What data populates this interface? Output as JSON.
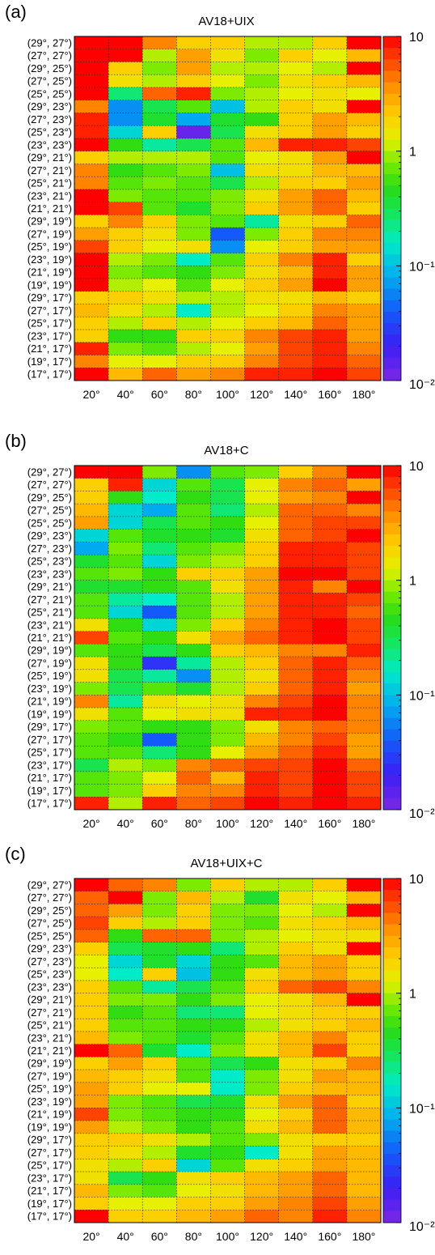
{
  "chart_data": [
    {
      "panel_label": "(a)",
      "title": "AV18+UIX",
      "type": "heatmap",
      "x": [
        "20°",
        "40°",
        "60°",
        "80°",
        "100°",
        "120°",
        "140°",
        "160°",
        "180°"
      ],
      "y": [
        "(29°, 27°)",
        "(27°, 27°)",
        "(29°, 25°)",
        "(27°, 25°)",
        "(25°, 25°)",
        "(29°, 23°)",
        "(27°, 23°)",
        "(25°, 23°)",
        "(23°, 23°)",
        "(29°, 21°)",
        "(27°, 21°)",
        "(25°, 21°)",
        "(23°, 21°)",
        "(21°, 21°)",
        "(29°, 19°)",
        "(27°, 19°)",
        "(25°, 19°)",
        "(23°, 19°)",
        "(21°, 19°)",
        "(19°, 19°)",
        "(29°, 17°)",
        "(27°, 17°)",
        "(25°, 17°)",
        "(23°, 17°)",
        "(21°, 17°)",
        "(19°, 17°)",
        "(17°, 17°)"
      ],
      "colorbar": {
        "scale": "log",
        "range": [
          0.01,
          10
        ],
        "ticks": [
          "10",
          "1",
          "10⁻¹",
          "10⁻²"
        ]
      },
      "z_log10": [
        [
          1.0,
          1.0,
          0.6,
          0.3,
          0.3,
          0.0,
          0.0,
          0.3,
          1.0
        ],
        [
          1.0,
          1.0,
          0.0,
          0.5,
          0.2,
          -0.1,
          0.3,
          0.1,
          0.4
        ],
        [
          1.0,
          0.3,
          -0.1,
          0.5,
          0.0,
          0.0,
          0.1,
          0.0,
          1.0
        ],
        [
          1.0,
          0.2,
          0.0,
          0.3,
          0.1,
          -0.1,
          0.2,
          0.3,
          0.4
        ],
        [
          1.0,
          -0.6,
          0.7,
          0.9,
          -0.1,
          0.0,
          0.1,
          0.2,
          0.1
        ],
        [
          0.6,
          -1.2,
          -0.5,
          -0.2,
          -1.0,
          0.0,
          0.3,
          0.2,
          1.0
        ],
        [
          0.9,
          -1.2,
          -0.4,
          -1.1,
          -0.4,
          -0.3,
          0.3,
          0.5,
          0.4
        ],
        [
          0.9,
          -0.9,
          0.3,
          -1.9,
          -0.5,
          0.2,
          0.3,
          0.5,
          0.3
        ],
        [
          1.0,
          -0.3,
          -0.7,
          -0.5,
          -0.2,
          0.4,
          0.9,
          0.9,
          0.8
        ],
        [
          0.3,
          0.0,
          0.0,
          0.0,
          -0.2,
          0.1,
          0.2,
          0.5,
          1.0
        ],
        [
          0.6,
          -0.3,
          -0.2,
          -0.1,
          -1.0,
          0.2,
          0.2,
          0.4,
          0.4
        ],
        [
          0.6,
          -0.2,
          -0.1,
          -0.2,
          -0.5,
          0.0,
          0.3,
          0.3,
          0.5
        ],
        [
          1.0,
          -0.1,
          -0.2,
          -0.2,
          -0.1,
          0.2,
          0.5,
          0.7,
          0.4
        ],
        [
          1.0,
          0.8,
          -0.2,
          -0.4,
          -0.1,
          0.3,
          0.5,
          0.7,
          0.3
        ],
        [
          0.3,
          0.6,
          0.3,
          -0.1,
          -0.2,
          -0.7,
          0.2,
          0.3,
          0.7
        ],
        [
          0.5,
          0.3,
          0.2,
          -0.1,
          -1.4,
          -0.1,
          0.3,
          0.6,
          0.6
        ],
        [
          0.8,
          0.3,
          0.1,
          0.2,
          -1.2,
          0.1,
          0.3,
          0.5,
          0.5
        ],
        [
          1.0,
          0.0,
          -0.1,
          -0.8,
          -0.2,
          0.3,
          0.6,
          0.9,
          0.3
        ],
        [
          1.0,
          -0.1,
          -0.2,
          -0.3,
          -0.1,
          0.2,
          0.4,
          0.9,
          0.5
        ],
        [
          1.0,
          0.0,
          0.1,
          -0.2,
          0.1,
          0.3,
          0.5,
          1.0,
          0.5
        ],
        [
          0.3,
          0.3,
          0.2,
          0.0,
          0.0,
          0.2,
          0.2,
          0.4,
          0.3
        ],
        [
          0.4,
          0.2,
          0.0,
          -0.8,
          0.0,
          0.1,
          0.3,
          0.6,
          0.5
        ],
        [
          0.3,
          0.0,
          0.3,
          0.0,
          0.1,
          0.3,
          0.4,
          0.7,
          0.5
        ],
        [
          0.3,
          -0.3,
          -0.3,
          0.3,
          0.3,
          0.6,
          0.8,
          0.9,
          0.5
        ],
        [
          0.9,
          -0.1,
          -0.2,
          0.0,
          0.1,
          0.5,
          0.8,
          0.9,
          0.6
        ],
        [
          0.6,
          0.1,
          0.1,
          0.3,
          0.3,
          0.6,
          0.8,
          0.9,
          0.7
        ],
        [
          1.0,
          0.4,
          0.7,
          0.5,
          0.6,
          0.9,
          0.9,
          1.0,
          0.8
        ]
      ]
    },
    {
      "panel_label": "(b)",
      "title": "AV18+C",
      "type": "heatmap",
      "x": [
        "20°",
        "40°",
        "60°",
        "80°",
        "100°",
        "120°",
        "140°",
        "160°",
        "180°"
      ],
      "y": [
        "(29°, 27°)",
        "(27°, 27°)",
        "(29°, 25°)",
        "(27°, 25°)",
        "(25°, 25°)",
        "(29°, 23°)",
        "(27°, 23°)",
        "(25°, 23°)",
        "(23°, 23°)",
        "(29°, 21°)",
        "(27°, 21°)",
        "(25°, 21°)",
        "(23°, 21°)",
        "(21°, 21°)",
        "(29°, 19°)",
        "(27°, 19°)",
        "(25°, 19°)",
        "(23°, 19°)",
        "(21°, 19°)",
        "(19°, 19°)",
        "(29°, 17°)",
        "(27°, 17°)",
        "(25°, 17°)",
        "(23°, 17°)",
        "(21°, 17°)",
        "(19°, 17°)",
        "(17°, 17°)"
      ],
      "colorbar": {
        "scale": "log",
        "range": [
          0.01,
          10
        ],
        "ticks": [
          "10",
          "1",
          "10⁻¹",
          "10⁻²"
        ]
      },
      "z_log10": [
        [
          1.0,
          1.0,
          -0.1,
          -1.2,
          -0.2,
          -0.1,
          0.3,
          0.6,
          1.0
        ],
        [
          0.3,
          0.9,
          -0.9,
          -0.2,
          -0.5,
          0.1,
          0.6,
          0.7,
          0.5
        ],
        [
          0.3,
          -0.3,
          -0.8,
          -0.3,
          -0.5,
          0.1,
          0.5,
          0.6,
          1.0
        ],
        [
          0.4,
          -0.9,
          -1.1,
          -0.2,
          -0.6,
          0.0,
          0.7,
          0.7,
          0.6
        ],
        [
          0.5,
          -0.9,
          -0.5,
          -0.2,
          -0.3,
          0.1,
          0.7,
          0.8,
          0.8
        ],
        [
          -0.9,
          -0.2,
          -0.4,
          -0.3,
          -0.4,
          0.2,
          0.7,
          0.8,
          1.0
        ],
        [
          -1.1,
          -0.1,
          -0.6,
          -0.2,
          -0.1,
          0.3,
          0.9,
          0.9,
          0.8
        ],
        [
          -0.4,
          -0.2,
          -0.9,
          -0.1,
          0.0,
          0.3,
          0.9,
          0.9,
          0.8
        ],
        [
          -0.2,
          -0.1,
          -0.3,
          0.3,
          0.3,
          0.5,
          1.0,
          1.0,
          0.8
        ],
        [
          -0.4,
          -0.4,
          -0.3,
          -0.2,
          0.2,
          0.5,
          0.9,
          0.6,
          1.0
        ],
        [
          -0.2,
          -0.7,
          -0.8,
          -0.2,
          0.0,
          0.5,
          0.9,
          0.9,
          0.8
        ],
        [
          -0.2,
          -0.9,
          -1.4,
          -0.2,
          0.0,
          0.5,
          0.9,
          0.9,
          0.7
        ],
        [
          0.2,
          -0.3,
          -0.9,
          -0.1,
          0.3,
          0.6,
          0.9,
          1.0,
          0.8
        ],
        [
          0.8,
          -0.2,
          -0.3,
          0.2,
          0.5,
          0.7,
          0.9,
          1.0,
          0.8
        ],
        [
          -0.2,
          -0.3,
          -0.5,
          -0.3,
          0.3,
          0.4,
          0.6,
          0.6,
          0.9
        ],
        [
          0.2,
          -0.3,
          -1.6,
          -0.7,
          0.0,
          0.3,
          0.7,
          0.9,
          0.7
        ],
        [
          0.2,
          -0.5,
          -0.7,
          -1.2,
          0.0,
          0.2,
          0.7,
          0.9,
          0.6
        ],
        [
          -0.1,
          -0.5,
          -0.2,
          -0.4,
          0.0,
          0.3,
          0.7,
          0.9,
          0.5
        ],
        [
          0.6,
          -0.7,
          0.2,
          0.1,
          0.2,
          0.6,
          0.8,
          1.0,
          0.6
        ],
        [
          0.2,
          -0.2,
          0.1,
          0.2,
          0.2,
          0.9,
          0.9,
          1.0,
          0.6
        ],
        [
          -0.1,
          -0.2,
          -0.3,
          -0.3,
          -0.1,
          0.2,
          0.6,
          0.7,
          0.6
        ],
        [
          -0.2,
          -0.3,
          -1.4,
          -0.3,
          -0.1,
          0.4,
          0.6,
          0.8,
          0.5
        ],
        [
          -0.2,
          -0.2,
          -0.6,
          -0.3,
          0.1,
          0.5,
          0.7,
          0.9,
          0.5
        ],
        [
          -0.5,
          0.0,
          -0.1,
          0.6,
          0.7,
          0.8,
          0.8,
          1.0,
          0.7
        ],
        [
          -0.2,
          -0.1,
          0.1,
          0.7,
          0.4,
          0.9,
          0.8,
          1.0,
          0.8
        ],
        [
          -0.2,
          -0.1,
          0.3,
          0.6,
          0.6,
          0.9,
          0.8,
          1.0,
          0.8
        ],
        [
          0.9,
          0.0,
          0.9,
          0.7,
          0.8,
          1.0,
          0.9,
          1.0,
          0.9
        ]
      ]
    },
    {
      "panel_label": "(c)",
      "title": "AV18+UIX+C",
      "type": "heatmap",
      "x": [
        "20°",
        "40°",
        "60°",
        "80°",
        "100°",
        "120°",
        "140°",
        "160°",
        "180°"
      ],
      "y": [
        "(29°, 27°)",
        "(27°, 27°)",
        "(29°, 25°)",
        "(27°, 25°)",
        "(25°, 25°)",
        "(29°, 23°)",
        "(27°, 23°)",
        "(25°, 23°)",
        "(23°, 23°)",
        "(29°, 21°)",
        "(27°, 21°)",
        "(25°, 21°)",
        "(23°, 21°)",
        "(21°, 21°)",
        "(29°, 19°)",
        "(27°, 19°)",
        "(25°, 19°)",
        "(23°, 19°)",
        "(21°, 19°)",
        "(19°, 19°)",
        "(29°, 17°)",
        "(27°, 17°)",
        "(25°, 17°)",
        "(23°, 17°)",
        "(21°, 17°)",
        "(19°, 17°)",
        "(17°, 17°)"
      ],
      "colorbar": {
        "scale": "log",
        "range": [
          0.01,
          10
        ],
        "ticks": [
          "10",
          "1",
          "10⁻¹",
          "10⁻²"
        ]
      },
      "z_log10": [
        [
          1.0,
          0.7,
          0.6,
          -0.1,
          0.3,
          0.0,
          0.0,
          0.3,
          1.0
        ],
        [
          0.7,
          1.0,
          -0.1,
          0.4,
          0.0,
          -0.4,
          0.2,
          0.1,
          0.4
        ],
        [
          0.7,
          0.5,
          -0.1,
          0.3,
          -0.1,
          -0.1,
          0.1,
          0.0,
          1.0
        ],
        [
          0.8,
          0.3,
          0.0,
          0.3,
          -0.1,
          -0.2,
          0.2,
          0.3,
          0.4
        ],
        [
          0.7,
          -0.3,
          0.7,
          0.7,
          -0.1,
          0.0,
          0.1,
          0.2,
          0.2
        ],
        [
          0.3,
          -0.5,
          -0.4,
          -0.3,
          -0.6,
          0.0,
          0.3,
          0.2,
          1.0
        ],
        [
          0.1,
          -0.9,
          -0.4,
          -0.9,
          -0.3,
          -0.2,
          0.4,
          0.5,
          0.3
        ],
        [
          0.1,
          -0.8,
          0.3,
          -1.0,
          -0.3,
          0.2,
          0.4,
          0.5,
          0.3
        ],
        [
          0.3,
          -0.2,
          -0.7,
          -0.5,
          -0.2,
          0.3,
          0.7,
          0.8,
          0.6
        ],
        [
          0.3,
          -0.1,
          -0.1,
          -0.3,
          -0.1,
          0.1,
          0.2,
          0.4,
          1.0
        ],
        [
          0.3,
          -0.3,
          -0.2,
          -0.6,
          -0.6,
          0.1,
          0.2,
          0.3,
          0.3
        ],
        [
          0.3,
          -0.2,
          -0.2,
          -0.3,
          -0.3,
          0.0,
          0.2,
          0.3,
          0.4
        ],
        [
          0.4,
          -0.1,
          -0.2,
          -0.4,
          -0.2,
          0.2,
          0.4,
          0.6,
          0.3
        ],
        [
          1.0,
          0.7,
          -0.4,
          -0.8,
          -0.1,
          0.2,
          0.4,
          0.8,
          0.3
        ],
        [
          0.3,
          0.5,
          0.3,
          -0.2,
          -0.5,
          -0.3,
          0.2,
          0.3,
          0.6
        ],
        [
          0.4,
          0.3,
          0.2,
          -0.2,
          -0.8,
          -0.1,
          0.2,
          0.5,
          0.4
        ],
        [
          0.5,
          0.3,
          0.1,
          0.1,
          -0.8,
          -0.1,
          0.3,
          0.4,
          0.4
        ],
        [
          0.5,
          -0.1,
          -0.2,
          -0.5,
          -0.4,
          0.2,
          0.5,
          0.7,
          0.3
        ],
        [
          0.8,
          -0.1,
          -0.2,
          -0.3,
          -0.3,
          0.1,
          0.3,
          0.7,
          0.4
        ],
        [
          0.5,
          0.0,
          -0.1,
          -0.3,
          -0.2,
          0.2,
          0.4,
          0.7,
          0.4
        ],
        [
          0.3,
          0.3,
          0.2,
          0.0,
          -0.2,
          -0.1,
          0.2,
          0.3,
          0.3
        ],
        [
          0.3,
          0.2,
          0.0,
          -0.4,
          -0.3,
          -0.8,
          0.2,
          0.5,
          0.4
        ],
        [
          0.2,
          0.0,
          0.3,
          -0.9,
          -0.2,
          0.2,
          0.3,
          0.5,
          0.4
        ],
        [
          0.2,
          -0.5,
          -0.3,
          0.2,
          0.3,
          0.4,
          0.5,
          0.7,
          0.4
        ],
        [
          0.4,
          -0.1,
          -0.2,
          0.1,
          0.2,
          0.4,
          0.5,
          0.7,
          0.4
        ],
        [
          0.3,
          0.1,
          0.1,
          0.3,
          0.3,
          0.5,
          0.6,
          0.8,
          0.5
        ],
        [
          1.0,
          0.3,
          0.3,
          0.4,
          0.5,
          0.7,
          0.6,
          0.9,
          0.6
        ]
      ]
    }
  ]
}
